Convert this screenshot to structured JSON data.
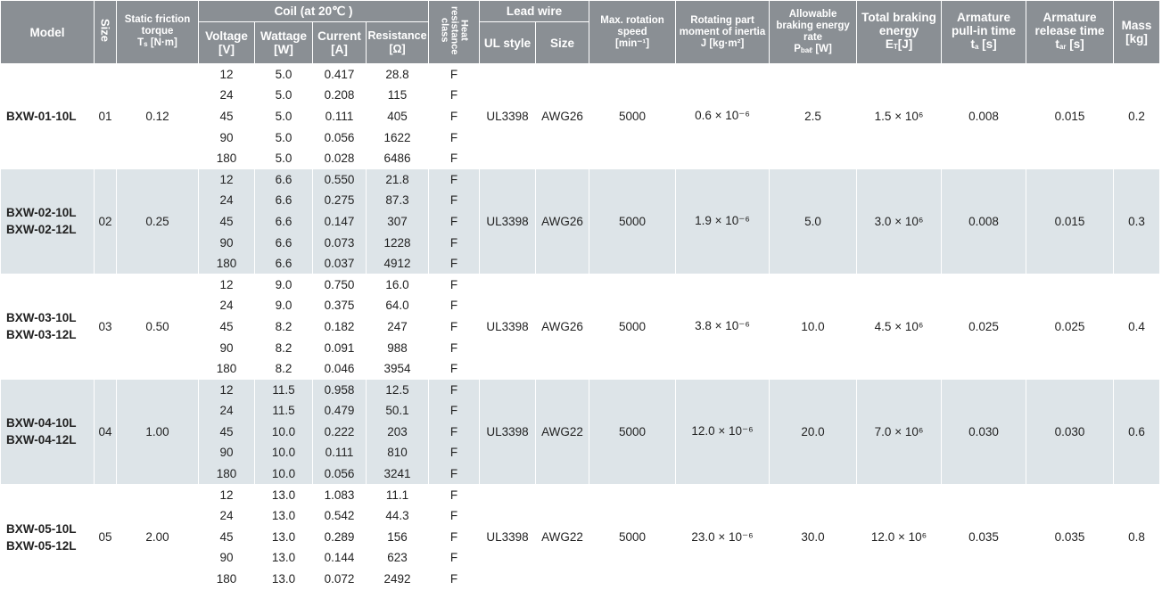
{
  "header": {
    "model": "Model",
    "size": "Size",
    "torque": {
      "label": "Static friction torque",
      "sym": "T",
      "sub": "s",
      "unit": "[N·m]"
    },
    "coil": {
      "group": "Coil (at 20℃ )",
      "voltage": "Voltage",
      "voltage_unit": "[V]",
      "wattage": "Wattage",
      "wattage_unit": "[W]",
      "current": "Current",
      "current_unit": "[A]",
      "resistance": "Resistance",
      "resistance_unit": "[Ω]"
    },
    "heat": "Heat resistance class",
    "lead": {
      "group": "Lead wire",
      "ul": "UL style",
      "size": "Size"
    },
    "speed": {
      "label": "Max. rotation speed",
      "unit": "[min⁻¹]"
    },
    "inertia": {
      "label": "Rotating part moment of inertia",
      "unit": "J [kg·m²]"
    },
    "rate": {
      "label": "Allowable braking energy rate",
      "sym": "P",
      "sub": "baℓ",
      "unit": "[W]"
    },
    "energy": {
      "label": "Total braking energy",
      "sym": "E",
      "sub": "T",
      "unit": "[J]"
    },
    "pull_in": {
      "label": "Armature pull-in time",
      "sym": "t",
      "sub": "a",
      "unit": "[s]"
    },
    "release": {
      "label": "Armature release time",
      "sym": "t",
      "sub": "ar",
      "unit": "[s]"
    },
    "mass": {
      "label": "Mass",
      "unit": "[kg]"
    }
  },
  "groups": [
    {
      "models": [
        "BXW-01-10L"
      ],
      "size": "01",
      "torque": "0.12",
      "rows": [
        [
          "12",
          "5.0",
          "0.417",
          "28.8",
          "F"
        ],
        [
          "24",
          "5.0",
          "0.208",
          "115",
          "F"
        ],
        [
          "45",
          "5.0",
          "0.111",
          "405",
          "F"
        ],
        [
          "90",
          "5.0",
          "0.056",
          "1622",
          "F"
        ],
        [
          "180",
          "5.0",
          "0.028",
          "6486",
          "F"
        ]
      ],
      "ul": "UL3398",
      "awg": "AWG26",
      "speed": "5000",
      "inertia": "0.6 × 10⁻⁶",
      "rate": "2.5",
      "energy": "1.5 × 10⁶",
      "pull_in": "0.008",
      "release": "0.015",
      "mass": "0.2"
    },
    {
      "models": [
        "BXW-02-10L",
        "BXW-02-12L"
      ],
      "size": "02",
      "torque": "0.25",
      "rows": [
        [
          "12",
          "6.6",
          "0.550",
          "21.8",
          "F"
        ],
        [
          "24",
          "6.6",
          "0.275",
          "87.3",
          "F"
        ],
        [
          "45",
          "6.6",
          "0.147",
          "307",
          "F"
        ],
        [
          "90",
          "6.6",
          "0.073",
          "1228",
          "F"
        ],
        [
          "180",
          "6.6",
          "0.037",
          "4912",
          "F"
        ]
      ],
      "ul": "UL3398",
      "awg": "AWG26",
      "speed": "5000",
      "inertia": "1.9 × 10⁻⁶",
      "rate": "5.0",
      "energy": "3.0 × 10⁶",
      "pull_in": "0.008",
      "release": "0.015",
      "mass": "0.3"
    },
    {
      "models": [
        "BXW-03-10L",
        "BXW-03-12L"
      ],
      "size": "03",
      "torque": "0.50",
      "rows": [
        [
          "12",
          "9.0",
          "0.750",
          "16.0",
          "F"
        ],
        [
          "24",
          "9.0",
          "0.375",
          "64.0",
          "F"
        ],
        [
          "45",
          "8.2",
          "0.182",
          "247",
          "F"
        ],
        [
          "90",
          "8.2",
          "0.091",
          "988",
          "F"
        ],
        [
          "180",
          "8.2",
          "0.046",
          "3954",
          "F"
        ]
      ],
      "ul": "UL3398",
      "awg": "AWG26",
      "speed": "5000",
      "inertia": "3.8 × 10⁻⁶",
      "rate": "10.0",
      "energy": "4.5 × 10⁶",
      "pull_in": "0.025",
      "release": "0.025",
      "mass": "0.4"
    },
    {
      "models": [
        "BXW-04-10L",
        "BXW-04-12L"
      ],
      "size": "04",
      "torque": "1.00",
      "rows": [
        [
          "12",
          "11.5",
          "0.958",
          "12.5",
          "F"
        ],
        [
          "24",
          "11.5",
          "0.479",
          "50.1",
          "F"
        ],
        [
          "45",
          "10.0",
          "0.222",
          "203",
          "F"
        ],
        [
          "90",
          "10.0",
          "0.111",
          "810",
          "F"
        ],
        [
          "180",
          "10.0",
          "0.056",
          "3241",
          "F"
        ]
      ],
      "ul": "UL3398",
      "awg": "AWG22",
      "speed": "5000",
      "inertia": "12.0 × 10⁻⁶",
      "rate": "20.0",
      "energy": "7.0 × 10⁶",
      "pull_in": "0.030",
      "release": "0.030",
      "mass": "0.6"
    },
    {
      "models": [
        "BXW-05-10L",
        "BXW-05-12L"
      ],
      "size": "05",
      "torque": "2.00",
      "rows": [
        [
          "12",
          "13.0",
          "1.083",
          "11.1",
          "F"
        ],
        [
          "24",
          "13.0",
          "0.542",
          "44.3",
          "F"
        ],
        [
          "45",
          "13.0",
          "0.289",
          "156",
          "F"
        ],
        [
          "90",
          "13.0",
          "0.144",
          "623",
          "F"
        ],
        [
          "180",
          "13.0",
          "0.072",
          "2492",
          "F"
        ]
      ],
      "ul": "UL3398",
      "awg": "AWG22",
      "speed": "5000",
      "inertia": "23.0 × 10⁻⁶",
      "rate": "30.0",
      "energy": "12.0 × 10⁶",
      "pull_in": "0.035",
      "release": "0.035",
      "mass": "0.8"
    }
  ]
}
